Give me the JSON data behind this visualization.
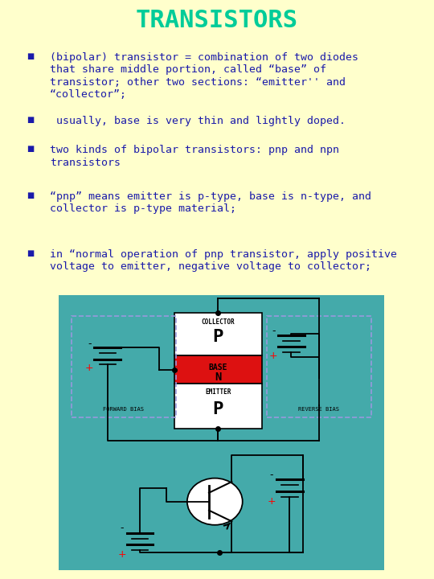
{
  "title": "TRANSISTORS",
  "title_color": "#00CC99",
  "title_fontsize": 22,
  "panel_bg": "#FFFFCC",
  "bullet_color": "#1a1aaa",
  "bullet_fontsize": 9.5,
  "bullets": [
    "(bipolar) transistor = combination of two diodes\nthat share middle portion, called “base” of\ntransistor; other two sections: “emitter'' and\n“collector”;",
    " usually, base is very thin and lightly doped.",
    "two kinds of bipolar transistors: pnp and npn\ntransistors",
    "“pnp” means emitter is p-type, base is n-type, and\ncollector is p-type material;",
    "in “normal operation of pnp transistor, apply positive\nvoltage to emitter, negative voltage to collector;"
  ],
  "diagram_bg": "#44AAAA",
  "n_color": "#DD1111",
  "fwd_box_color": "#9999DD",
  "rev_box_color": "#9999DD"
}
